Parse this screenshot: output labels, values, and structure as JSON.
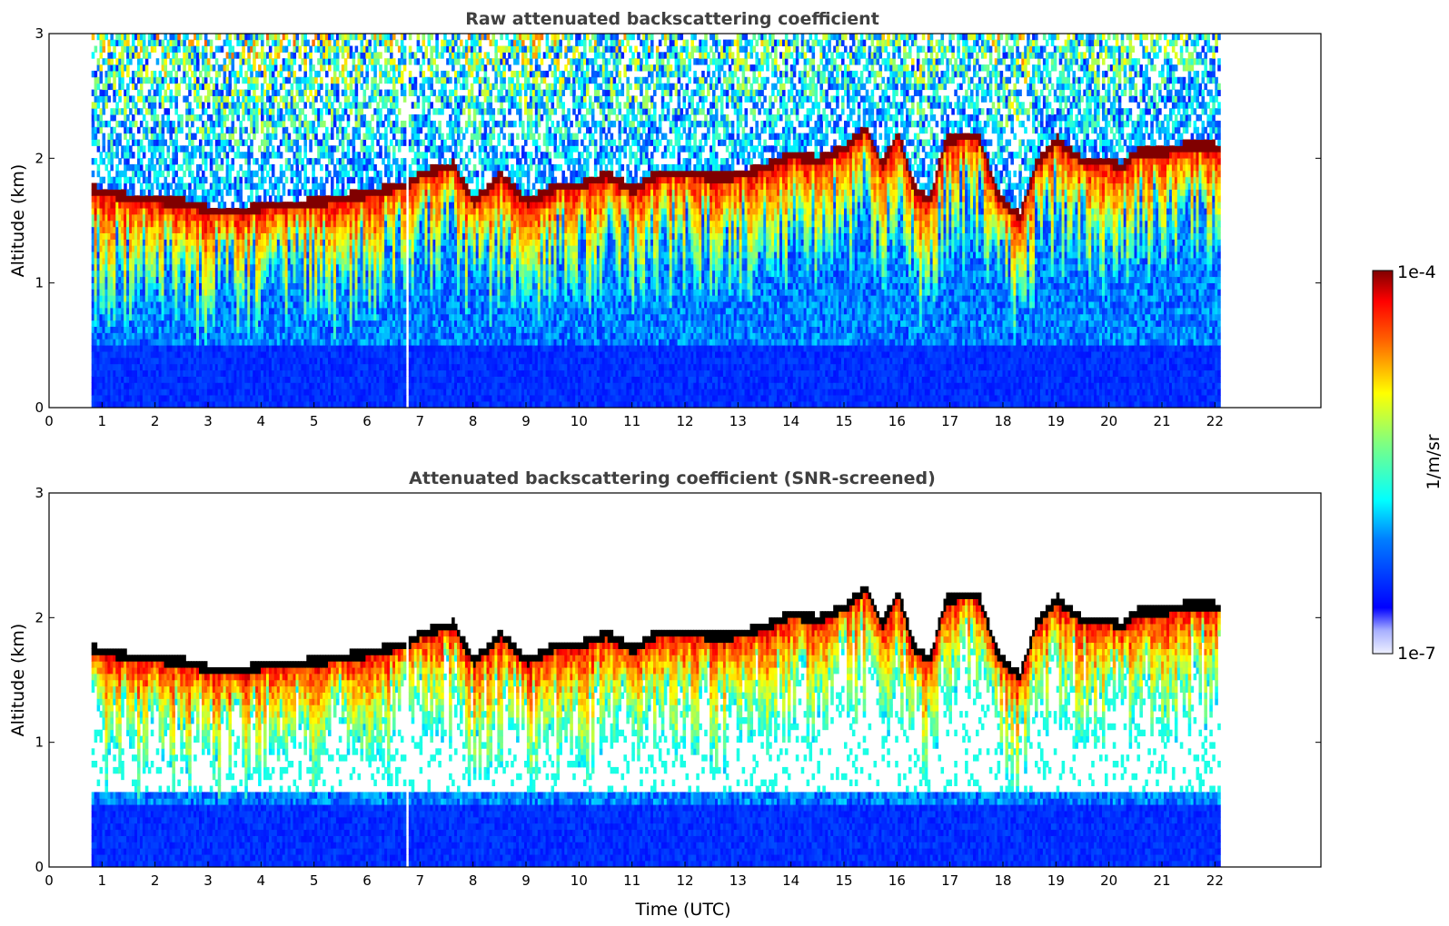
{
  "chart_data": [
    {
      "type": "heatmap",
      "title": "Raw attenuated backscattering coefficient",
      "xlabel": "",
      "ylabel": "Altitude (km)",
      "xlim": [
        0,
        24
      ],
      "ylim": [
        0,
        3
      ],
      "xticks": [
        0,
        1,
        2,
        3,
        4,
        5,
        6,
        7,
        8,
        9,
        10,
        11,
        12,
        13,
        14,
        15,
        16,
        17,
        18,
        19,
        20,
        21,
        22
      ],
      "yticks": [
        0,
        1,
        2,
        3
      ],
      "data_range_x": [
        0.8,
        22.1
      ],
      "gap_time": 6.72,
      "screened": false,
      "cloud_top_km": [
        [
          0.8,
          1.78
        ],
        [
          1.5,
          1.72
        ],
        [
          2.5,
          1.68
        ],
        [
          3.0,
          1.62
        ],
        [
          3.5,
          1.6
        ],
        [
          4.0,
          1.65
        ],
        [
          5.0,
          1.68
        ],
        [
          6.0,
          1.75
        ],
        [
          6.7,
          1.82
        ],
        [
          7.0,
          1.9
        ],
        [
          7.6,
          1.98
        ],
        [
          8.0,
          1.68
        ],
        [
          8.5,
          1.9
        ],
        [
          9.0,
          1.68
        ],
        [
          9.5,
          1.8
        ],
        [
          10.0,
          1.82
        ],
        [
          10.5,
          1.9
        ],
        [
          11.0,
          1.78
        ],
        [
          11.5,
          1.92
        ],
        [
          12.0,
          1.92
        ],
        [
          12.5,
          1.88
        ],
        [
          13.0,
          1.9
        ],
        [
          13.5,
          1.96
        ],
        [
          14.0,
          2.06
        ],
        [
          14.5,
          2.02
        ],
        [
          15.0,
          2.12
        ],
        [
          15.4,
          2.28
        ],
        [
          15.7,
          1.98
        ],
        [
          16.0,
          2.24
        ],
        [
          16.3,
          1.78
        ],
        [
          16.6,
          1.7
        ],
        [
          16.9,
          2.18
        ],
        [
          17.5,
          2.22
        ],
        [
          17.9,
          1.72
        ],
        [
          18.3,
          1.56
        ],
        [
          18.6,
          1.98
        ],
        [
          19.0,
          2.18
        ],
        [
          19.5,
          2.0
        ],
        [
          20.0,
          2.02
        ],
        [
          20.2,
          1.95
        ],
        [
          20.5,
          2.08
        ],
        [
          21.0,
          2.08
        ],
        [
          21.5,
          2.14
        ],
        [
          22.1,
          2.12
        ]
      ]
    },
    {
      "type": "heatmap",
      "title": "Attenuated backscattering coefficient (SNR-screened)",
      "xlabel": "Time (UTC)",
      "ylabel": "Altitude (km)",
      "xlim": [
        0,
        24
      ],
      "ylim": [
        0,
        3
      ],
      "xticks": [
        0,
        1,
        2,
        3,
        4,
        5,
        6,
        7,
        8,
        9,
        10,
        11,
        12,
        13,
        14,
        15,
        16,
        17,
        18,
        19,
        20,
        21,
        22
      ],
      "yticks": [
        0,
        1,
        2,
        3
      ],
      "data_range_x": [
        0.8,
        22.1
      ],
      "gap_time": 6.72,
      "screened": true,
      "cloud_top_km": [
        [
          0.8,
          1.78
        ],
        [
          1.5,
          1.72
        ],
        [
          2.5,
          1.68
        ],
        [
          3.0,
          1.62
        ],
        [
          3.5,
          1.6
        ],
        [
          4.0,
          1.65
        ],
        [
          5.0,
          1.68
        ],
        [
          6.0,
          1.75
        ],
        [
          6.7,
          1.82
        ],
        [
          7.0,
          1.9
        ],
        [
          7.6,
          1.98
        ],
        [
          8.0,
          1.68
        ],
        [
          8.5,
          1.9
        ],
        [
          9.0,
          1.68
        ],
        [
          9.5,
          1.8
        ],
        [
          10.0,
          1.82
        ],
        [
          10.5,
          1.9
        ],
        [
          11.0,
          1.78
        ],
        [
          11.5,
          1.92
        ],
        [
          12.0,
          1.92
        ],
        [
          12.5,
          1.88
        ],
        [
          13.0,
          1.9
        ],
        [
          13.5,
          1.96
        ],
        [
          14.0,
          2.06
        ],
        [
          14.5,
          2.02
        ],
        [
          15.0,
          2.12
        ],
        [
          15.4,
          2.28
        ],
        [
          15.7,
          1.98
        ],
        [
          16.0,
          2.24
        ],
        [
          16.3,
          1.78
        ],
        [
          16.6,
          1.7
        ],
        [
          16.9,
          2.18
        ],
        [
          17.5,
          2.22
        ],
        [
          17.9,
          1.72
        ],
        [
          18.3,
          1.56
        ],
        [
          18.6,
          1.98
        ],
        [
          19.0,
          2.18
        ],
        [
          19.5,
          2.0
        ],
        [
          20.0,
          2.02
        ],
        [
          20.2,
          1.95
        ],
        [
          20.5,
          2.08
        ],
        [
          21.0,
          2.08
        ],
        [
          21.5,
          2.14
        ],
        [
          22.1,
          2.12
        ]
      ]
    }
  ],
  "colorbar": {
    "label": "1/m/sr",
    "max_label": "1e-4",
    "min_label": "1e-7",
    "scale": "log",
    "colormap": "jet",
    "colors": [
      "#e6e6ff",
      "#0000ff",
      "#00ffff",
      "#ffff00",
      "#ff0000",
      "#800000"
    ]
  }
}
